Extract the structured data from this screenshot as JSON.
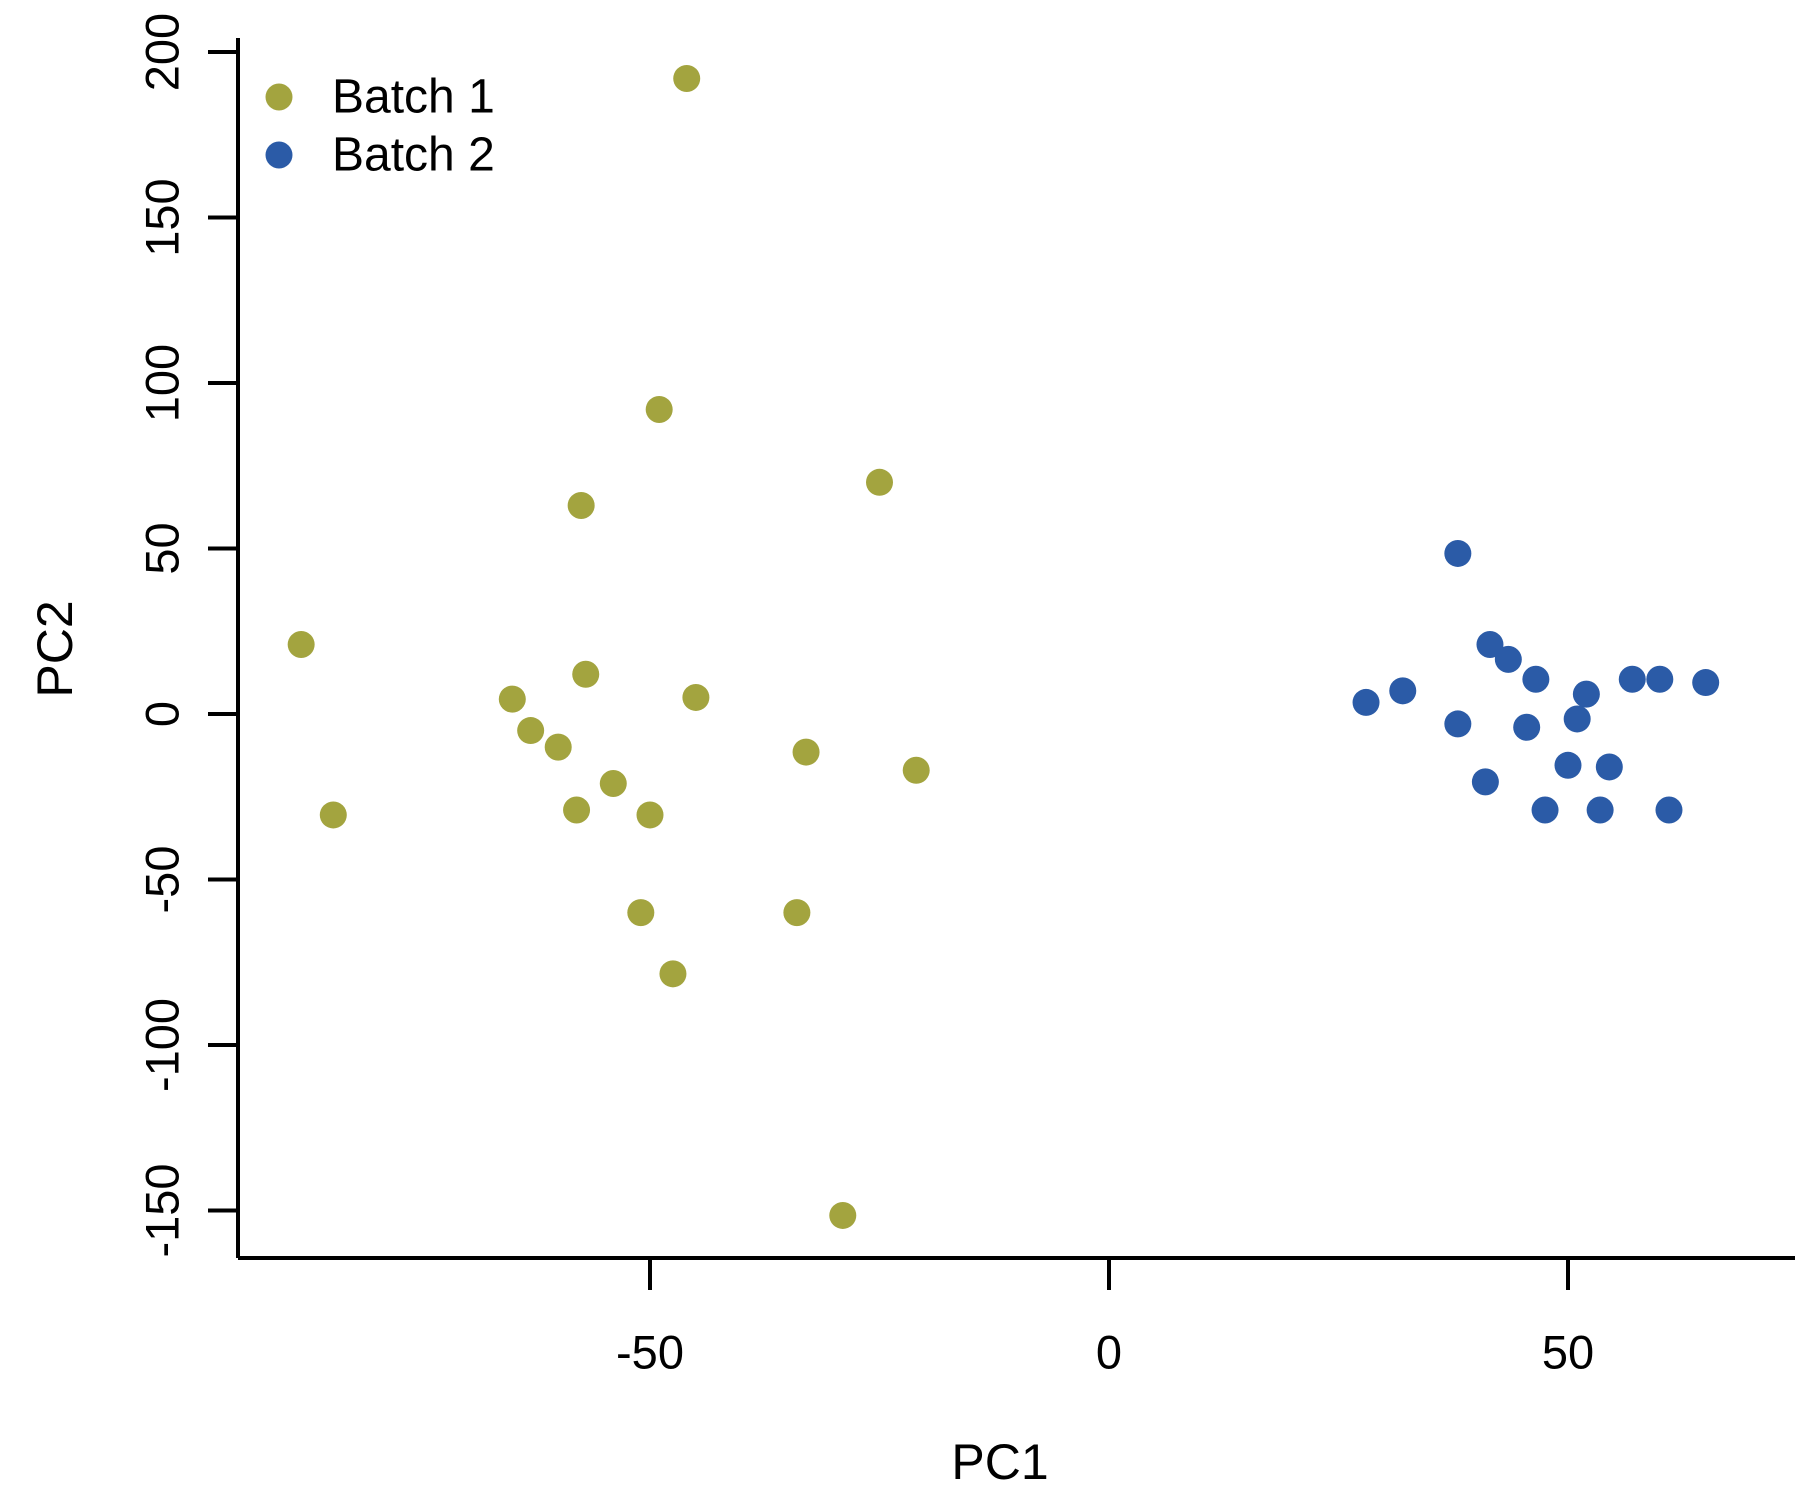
{
  "figure": {
    "background": "#ffffff",
    "text_color": "#000000",
    "axis_color": "#000000"
  },
  "chart_data": {
    "type": "scatter",
    "title": "",
    "xlabel": "PC1",
    "ylabel": "PC2",
    "x_ticks": [
      "-50",
      "0",
      "50"
    ],
    "x_tick_values": [
      -50,
      0,
      50
    ],
    "y_ticks": [
      "200",
      "150",
      "100",
      "50",
      "0",
      "-50",
      "-100",
      "-150"
    ],
    "y_tick_values": [
      200,
      150,
      100,
      50,
      0,
      -50,
      -100,
      -150
    ],
    "xlim": [
      -95,
      74
    ],
    "ylim": [
      -165,
      215
    ],
    "grid": false,
    "marker": {
      "shape": "circle",
      "radius_px": 13.5
    },
    "legend": {
      "position": "top-left",
      "entries": [
        {
          "label": "Batch 1",
          "color": "#A3A43F"
        },
        {
          "label": "Batch 2",
          "color": "#2B5BA7"
        }
      ]
    },
    "series": [
      {
        "name": "Batch 1",
        "color": "#A3A43F",
        "points": [
          [
            -46,
            192
          ],
          [
            -49,
            92
          ],
          [
            -57.5,
            63
          ],
          [
            -25,
            70
          ],
          [
            -88,
            21
          ],
          [
            -57,
            12
          ],
          [
            -65,
            4.5
          ],
          [
            -45,
            5
          ],
          [
            -63,
            -5
          ],
          [
            -60,
            -10
          ],
          [
            -33,
            -11.5
          ],
          [
            -21,
            -17
          ],
          [
            -54,
            -21
          ],
          [
            -58,
            -29
          ],
          [
            -50,
            -30.5
          ],
          [
            -84.5,
            -30.5
          ],
          [
            -51,
            -60
          ],
          [
            -34,
            -60
          ],
          [
            -47.5,
            -78.5
          ],
          [
            -29,
            -151.5
          ]
        ]
      },
      {
        "name": "Batch 2",
        "color": "#2B5BA7",
        "points": [
          [
            38,
            48.5
          ],
          [
            41.5,
            21
          ],
          [
            43.5,
            16.5
          ],
          [
            46.5,
            10.5
          ],
          [
            52,
            6
          ],
          [
            51,
            -1.5
          ],
          [
            57,
            10.5
          ],
          [
            60,
            10.5
          ],
          [
            65,
            9.5
          ],
          [
            32,
            7
          ],
          [
            28,
            3.5
          ],
          [
            38,
            -3
          ],
          [
            45.5,
            -4
          ],
          [
            50,
            -15.5
          ],
          [
            54.5,
            -16
          ],
          [
            41,
            -20.5
          ],
          [
            47.5,
            -29
          ],
          [
            53.5,
            -29
          ],
          [
            61,
            -29
          ]
        ]
      }
    ]
  }
}
